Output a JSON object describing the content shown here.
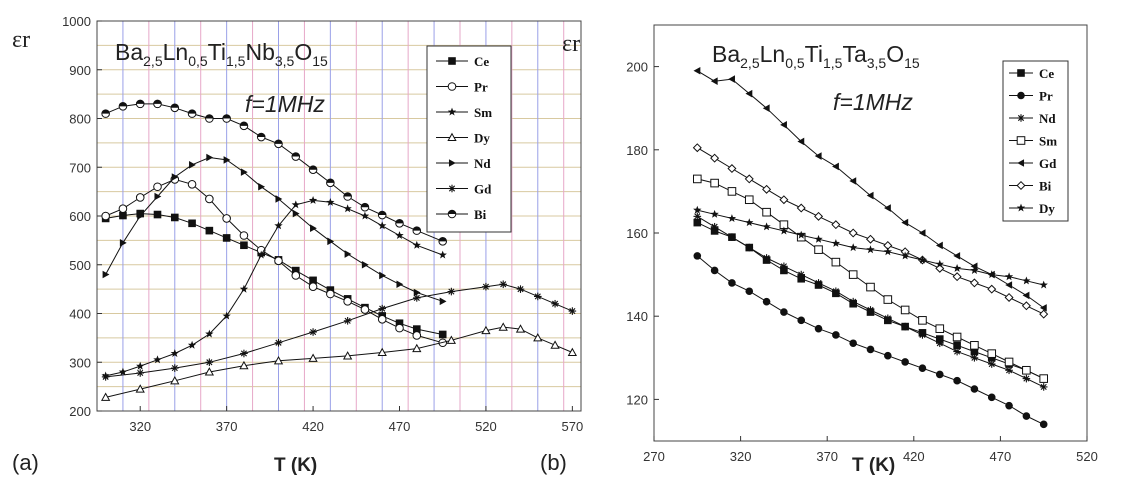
{
  "chart_data": [
    {
      "type": "line",
      "panel_label": "(a)",
      "title_parts": [
        "Ba",
        "2,5",
        "Ln",
        "0,5",
        "Ti",
        "1,5",
        "Nb",
        "3,5",
        "O",
        "15"
      ],
      "subtitle": "f=1MHz",
      "ylabel": "εr",
      "xlabel": "T (K)",
      "xlim": [
        295,
        575
      ],
      "ylim": [
        200,
        1000
      ],
      "xticks": [
        320,
        370,
        420,
        470,
        520,
        570
      ],
      "yticks": [
        200,
        300,
        400,
        500,
        600,
        700,
        800,
        900,
        1000
      ],
      "grid": true,
      "legend_position": "top-right",
      "series": [
        {
          "name": "Ce",
          "marker": "square-filled",
          "x": [
            300,
            310,
            320,
            330,
            340,
            350,
            360,
            370,
            380,
            390,
            400,
            410,
            420,
            430,
            440,
            450,
            460,
            470,
            480,
            495
          ],
          "y": [
            595,
            601,
            605,
            603,
            597,
            585,
            570,
            555,
            540,
            525,
            510,
            488,
            468,
            448,
            430,
            412,
            395,
            380,
            368,
            357
          ]
        },
        {
          "name": "Pr",
          "marker": "circle-open",
          "x": [
            300,
            310,
            320,
            330,
            340,
            350,
            360,
            370,
            380,
            390,
            400,
            410,
            420,
            430,
            440,
            450,
            460,
            470,
            480,
            495
          ],
          "y": [
            600,
            615,
            638,
            660,
            675,
            665,
            635,
            595,
            560,
            530,
            508,
            478,
            455,
            440,
            425,
            408,
            388,
            370,
            355,
            340
          ]
        },
        {
          "name": "Sm",
          "marker": "star",
          "x": [
            300,
            310,
            320,
            330,
            340,
            350,
            360,
            370,
            380,
            390,
            400,
            410,
            420,
            430,
            440,
            450,
            460,
            470,
            480,
            495
          ],
          "y": [
            272,
            280,
            292,
            305,
            318,
            335,
            358,
            395,
            450,
            520,
            580,
            623,
            632,
            628,
            615,
            600,
            580,
            560,
            540,
            520
          ]
        },
        {
          "name": "Dy",
          "marker": "triangle-up-open",
          "x": [
            300,
            320,
            340,
            360,
            380,
            400,
            420,
            440,
            460,
            480,
            500,
            520,
            530,
            540,
            550,
            560,
            570
          ],
          "y": [
            228,
            245,
            262,
            280,
            293,
            303,
            308,
            313,
            320,
            328,
            345,
            365,
            372,
            368,
            350,
            335,
            320
          ]
        },
        {
          "name": "Nd",
          "marker": "triangle-right-filled",
          "x": [
            300,
            310,
            320,
            330,
            340,
            350,
            360,
            370,
            380,
            390,
            400,
            410,
            420,
            430,
            440,
            450,
            460,
            470,
            480,
            495
          ],
          "y": [
            480,
            545,
            600,
            640,
            680,
            705,
            720,
            715,
            690,
            660,
            635,
            605,
            575,
            548,
            522,
            500,
            478,
            460,
            443,
            425
          ]
        },
        {
          "name": "Gd",
          "marker": "asterisk",
          "x": [
            300,
            320,
            340,
            360,
            380,
            400,
            420,
            440,
            460,
            480,
            500,
            520,
            530,
            540,
            550,
            560,
            570
          ],
          "y": [
            270,
            278,
            288,
            300,
            318,
            340,
            362,
            385,
            410,
            432,
            445,
            455,
            460,
            450,
            435,
            420,
            405
          ]
        },
        {
          "name": "Bi",
          "marker": "circle-half",
          "x": [
            300,
            310,
            320,
            330,
            340,
            350,
            360,
            370,
            380,
            390,
            400,
            410,
            420,
            430,
            440,
            450,
            460,
            470,
            480,
            495
          ],
          "y": [
            810,
            825,
            830,
            830,
            822,
            810,
            800,
            800,
            785,
            762,
            748,
            722,
            695,
            668,
            640,
            618,
            602,
            585,
            570,
            548
          ]
        }
      ]
    },
    {
      "type": "line",
      "panel_label": "(b)",
      "title_parts": [
        "Ba",
        "2,5",
        "Ln",
        "0,5",
        "Ti",
        "1,5",
        "Ta",
        "3,5",
        "O",
        "15"
      ],
      "subtitle": "f=1MHz",
      "ylabel": "εr",
      "xlabel": "T (K)",
      "xlim": [
        270,
        520
      ],
      "ylim": [
        110,
        210
      ],
      "xticks": [
        270,
        320,
        370,
        420,
        470,
        520
      ],
      "yticks": [
        120,
        140,
        160,
        180,
        200
      ],
      "grid": false,
      "legend_position": "top-right",
      "series": [
        {
          "name": "Ce",
          "marker": "square-filled",
          "x": [
            295,
            305,
            315,
            325,
            335,
            345,
            355,
            365,
            375,
            385,
            395,
            405,
            415,
            425,
            435,
            445,
            455,
            465,
            475,
            485,
            495
          ],
          "y": [
            162.5,
            160.5,
            159,
            156.5,
            153.5,
            151,
            149,
            147.5,
            145.5,
            143,
            141,
            139,
            137.5,
            136,
            134.5,
            133,
            131.5,
            130,
            128.5,
            127,
            125
          ]
        },
        {
          "name": "Pr",
          "marker": "circle-filled",
          "x": [
            295,
            305,
            315,
            325,
            335,
            345,
            355,
            365,
            375,
            385,
            395,
            405,
            415,
            425,
            435,
            445,
            455,
            465,
            475,
            485,
            495
          ],
          "y": [
            154.5,
            151,
            148,
            146,
            143.5,
            141,
            139,
            137,
            135.5,
            133.5,
            132,
            130.5,
            129,
            127.5,
            126,
            124.5,
            122.5,
            120.5,
            118.5,
            116,
            114
          ]
        },
        {
          "name": "Nd",
          "marker": "asterisk",
          "x": [
            295,
            305,
            315,
            325,
            335,
            345,
            355,
            365,
            375,
            385,
            395,
            405,
            415,
            425,
            435,
            445,
            455,
            465,
            475,
            485,
            495
          ],
          "y": [
            164,
            161.5,
            159,
            156.5,
            154,
            152,
            150,
            148,
            146,
            143.5,
            141.5,
            139.5,
            137.5,
            135.5,
            133.5,
            131.5,
            130,
            128.5,
            127,
            125,
            123
          ]
        },
        {
          "name": "Sm",
          "marker": "square-open",
          "x": [
            295,
            305,
            315,
            325,
            335,
            345,
            355,
            365,
            375,
            385,
            395,
            405,
            415,
            425,
            435,
            445,
            455,
            465,
            475,
            485,
            495
          ],
          "y": [
            173,
            172,
            170,
            168,
            165,
            162,
            159,
            156,
            153,
            150,
            147,
            144,
            141.5,
            139,
            137,
            135,
            133,
            131,
            129,
            127,
            125
          ]
        },
        {
          "name": "Gd",
          "marker": "triangle-left-filled",
          "x": [
            295,
            305,
            315,
            325,
            335,
            345,
            355,
            365,
            375,
            385,
            395,
            405,
            415,
            425,
            435,
            445,
            455,
            465,
            475,
            485,
            495
          ],
          "y": [
            199,
            196.5,
            197,
            193.5,
            190,
            186,
            182,
            178.5,
            176,
            172.5,
            169,
            166,
            162.5,
            160,
            157,
            154.5,
            152,
            150,
            147.5,
            145,
            142
          ]
        },
        {
          "name": "Bi",
          "marker": "diamond-open",
          "x": [
            295,
            305,
            315,
            325,
            335,
            345,
            355,
            365,
            375,
            385,
            395,
            405,
            415,
            425,
            435,
            445,
            455,
            465,
            475,
            485,
            495
          ],
          "y": [
            180.5,
            178,
            175.5,
            173,
            170.5,
            168,
            166,
            164,
            162,
            160,
            158.5,
            157,
            155.5,
            153.5,
            151.5,
            149.5,
            148,
            146.5,
            144.5,
            142.5,
            140.5
          ]
        },
        {
          "name": "Dy",
          "marker": "star",
          "x": [
            295,
            305,
            315,
            325,
            335,
            345,
            355,
            365,
            375,
            385,
            395,
            405,
            415,
            425,
            435,
            445,
            455,
            465,
            475,
            485,
            495
          ],
          "y": [
            165.5,
            164.5,
            163.5,
            162.5,
            161.5,
            160.5,
            159.5,
            158.5,
            157.5,
            156.5,
            156,
            155.5,
            154.5,
            153.5,
            152.5,
            151.5,
            151,
            150,
            149.5,
            148.5,
            147.5
          ]
        }
      ]
    }
  ]
}
